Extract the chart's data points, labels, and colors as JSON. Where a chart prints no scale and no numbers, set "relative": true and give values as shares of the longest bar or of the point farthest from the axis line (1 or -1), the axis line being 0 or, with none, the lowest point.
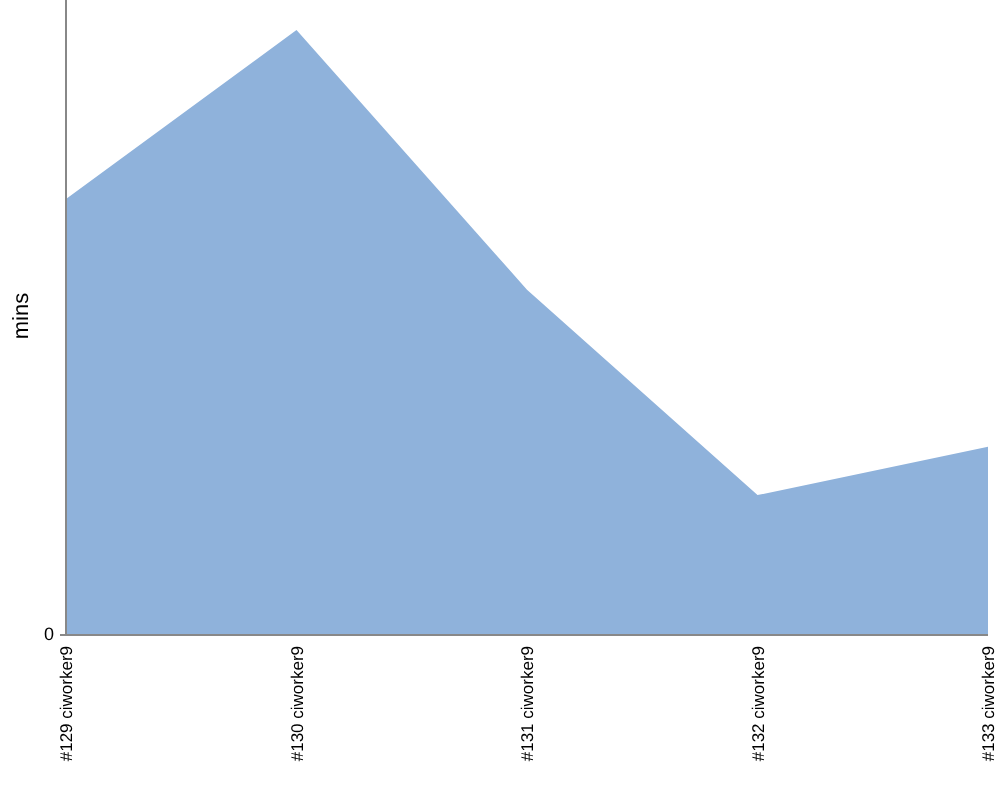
{
  "chart_data": {
    "type": "area",
    "ylabel": "mins",
    "relative": true,
    "annotations": [
      "0"
    ],
    "categories": [
      "#129 ciworker9",
      "#130 ciworker9",
      "#131 ciworker9",
      "#132 ciworker9",
      "#133 ciworker9"
    ],
    "series": [
      {
        "color": "#8fb2db",
        "values": [
          0.72,
          1,
          0.57,
          0.23,
          0.31
        ]
      }
    ]
  }
}
